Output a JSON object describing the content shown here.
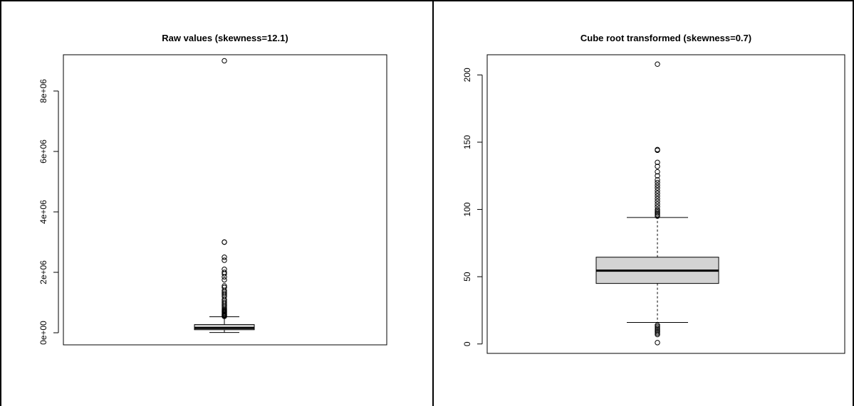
{
  "chart_data": [
    {
      "type": "boxplot",
      "title": "Raw values (skewness=12.1)",
      "xlabel": "",
      "ylabel": "",
      "ylim": [
        -400000,
        9200000
      ],
      "yticks": [
        0,
        2000000,
        4000000,
        6000000,
        8000000
      ],
      "ytick_labels": [
        "0e+00",
        "2e+06",
        "4e+06",
        "6e+06",
        "8e+06"
      ],
      "box": {
        "whisker_low": 10000,
        "q1": 100000,
        "median": 160000,
        "q3": 270000,
        "whisker_high": 530000,
        "fill": "#d3d3d3"
      },
      "outliers": [
        540000,
        560000,
        580000,
        600000,
        620000,
        650000,
        680000,
        700000,
        730000,
        760000,
        800000,
        850000,
        900000,
        950000,
        1000000,
        1050000,
        1100000,
        1200000,
        1250000,
        1300000,
        1350000,
        1400000,
        1500000,
        1550000,
        1750000,
        1850000,
        1950000,
        2000000,
        2100000,
        2400000,
        2500000,
        3000000,
        3000000,
        9000000
      ],
      "grid": false
    },
    {
      "type": "boxplot",
      "title": "Cube root transformed (skewness=0.7)",
      "xlabel": "",
      "ylabel": "",
      "ylim": [
        -7,
        215
      ],
      "yticks": [
        0,
        50,
        100,
        150,
        200
      ],
      "ytick_labels": [
        "0",
        "50",
        "100",
        "150",
        "200"
      ],
      "box": {
        "whisker_low": 16,
        "q1": 45,
        "median": 54.5,
        "q3": 64.5,
        "whisker_high": 94,
        "fill": "#d3d3d3"
      },
      "outliers": [
        1,
        7,
        8,
        9,
        10,
        11,
        12,
        13,
        14,
        95,
        96,
        97,
        98,
        99,
        100,
        102,
        104,
        106,
        108,
        110,
        112,
        114,
        116,
        118,
        120,
        122,
        125,
        128,
        132,
        135,
        144,
        144.5,
        208
      ],
      "grid": false
    }
  ]
}
